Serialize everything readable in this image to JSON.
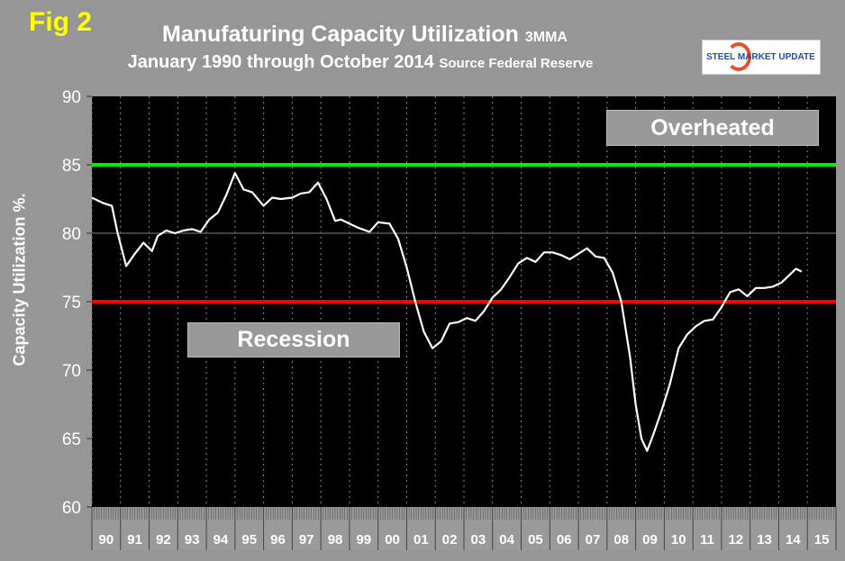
{
  "fig_label": "Fig 2",
  "title_main": "Manufaturing Capacity Utilization",
  "title_suffix": "3MMA",
  "subtitle_main": "January 1990 through October 2014",
  "subtitle_source": "Source Federal Reserve",
  "logo_text": "STEEL MARKET UPDATE",
  "annotations": {
    "overheated": "Overheated",
    "recession": "Recession"
  },
  "colors": {
    "line": "#ffffff",
    "overheated_line": "#00ee00",
    "recession_line": "#ff0000",
    "plot_bg": "#000000"
  },
  "chart_data": {
    "type": "line",
    "title": "Manufaturing Capacity Utilization 3MMA",
    "subtitle": "January 1990 through October 2014 Source Federal Reserve",
    "xlabel": "",
    "ylabel": "Capacity Utilization %.",
    "ylim": [
      60,
      90
    ],
    "yticks": [
      60,
      65,
      70,
      75,
      80,
      85,
      90
    ],
    "xlim": [
      1990,
      2016
    ],
    "xtick_labels": [
      "90",
      "91",
      "92",
      "93",
      "94",
      "95",
      "96",
      "97",
      "98",
      "99",
      "00",
      "01",
      "02",
      "03",
      "04",
      "05",
      "06",
      "07",
      "08",
      "09",
      "10",
      "11",
      "12",
      "13",
      "14",
      "15"
    ],
    "reference_lines": [
      {
        "name": "Overheated",
        "value": 85
      },
      {
        "name": "Recession",
        "value": 75
      }
    ],
    "grid": true,
    "series": [
      {
        "name": "Capacity Utilization 3MMA",
        "x": [
          1990.0,
          1990.4,
          1990.7,
          1990.9,
          1991.2,
          1991.5,
          1991.8,
          1992.1,
          1992.3,
          1992.6,
          1992.9,
          1993.2,
          1993.5,
          1993.8,
          1994.1,
          1994.4,
          1994.7,
          1995.0,
          1995.3,
          1995.6,
          1996.0,
          1996.3,
          1996.6,
          1997.0,
          1997.3,
          1997.6,
          1997.9,
          1998.2,
          1998.5,
          1998.7,
          1999.0,
          1999.3,
          1999.7,
          2000.0,
          2000.4,
          2000.7,
          2001.0,
          2001.3,
          2001.6,
          2001.9,
          2002.2,
          2002.5,
          2002.8,
          2003.1,
          2003.4,
          2003.7,
          2004.0,
          2004.3,
          2004.6,
          2004.9,
          2005.2,
          2005.5,
          2005.8,
          2006.1,
          2006.4,
          2006.7,
          2007.0,
          2007.3,
          2007.6,
          2007.9,
          2008.2,
          2008.5,
          2008.8,
          2009.0,
          2009.2,
          2009.4,
          2009.6,
          2009.9,
          2010.2,
          2010.5,
          2010.8,
          2011.1,
          2011.4,
          2011.7,
          2012.0,
          2012.3,
          2012.6,
          2012.9,
          2013.2,
          2013.5,
          2013.8,
          2014.1,
          2014.4,
          2014.6,
          2014.8
        ],
        "y": [
          82.6,
          82.2,
          82.0,
          80.0,
          77.6,
          78.5,
          79.3,
          78.7,
          79.8,
          80.2,
          80.0,
          80.2,
          80.3,
          80.1,
          81.0,
          81.5,
          82.8,
          84.4,
          83.2,
          83.0,
          82.0,
          82.6,
          82.5,
          82.6,
          82.9,
          83.0,
          83.7,
          82.5,
          80.9,
          81.0,
          80.7,
          80.4,
          80.1,
          80.8,
          80.7,
          79.6,
          77.5,
          75.0,
          72.8,
          71.6,
          72.1,
          73.4,
          73.5,
          73.8,
          73.6,
          74.3,
          75.3,
          75.9,
          76.8,
          77.8,
          78.2,
          77.9,
          78.6,
          78.6,
          78.4,
          78.1,
          78.5,
          78.9,
          78.3,
          78.2,
          77.1,
          75.0,
          71.0,
          67.5,
          65.0,
          64.1,
          65.2,
          67.0,
          69.0,
          71.6,
          72.6,
          73.2,
          73.6,
          73.7,
          74.6,
          75.7,
          75.9,
          75.4,
          76.0,
          76.0,
          76.1,
          76.4,
          77.0,
          77.4,
          77.2
        ]
      }
    ]
  }
}
